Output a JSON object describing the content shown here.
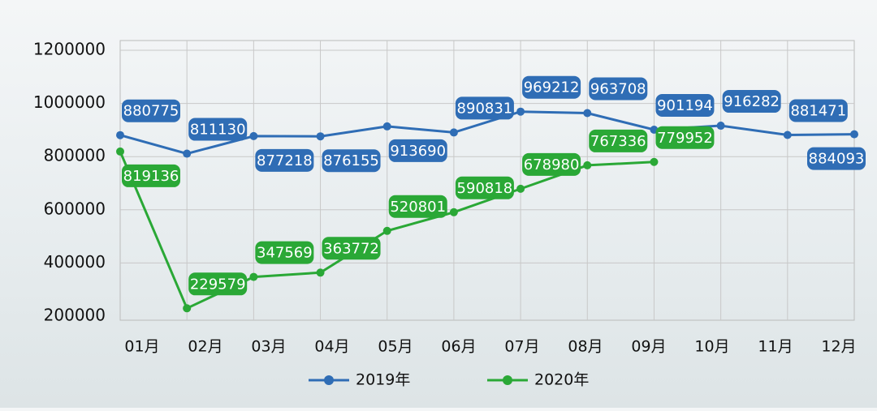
{
  "chart_data": {
    "type": "line",
    "categories": [
      "01月",
      "02月",
      "03月",
      "04月",
      "05月",
      "06月",
      "07月",
      "08月",
      "09月",
      "10月",
      "11月",
      "12月"
    ],
    "series": [
      {
        "name": "2019年",
        "color": "#2f6db5",
        "values": [
          880775,
          811130,
          877218,
          876155,
          913690,
          890831,
          969212,
          963708,
          901194,
          916282,
          881471,
          884093
        ]
      },
      {
        "name": "2020年",
        "color": "#2aa836",
        "values": [
          819136,
          229579,
          347569,
          363772,
          520801,
          590818,
          678980,
          767336,
          779952,
          null,
          null,
          null
        ]
      }
    ],
    "ylim": [
      200000,
      1200000
    ],
    "yticks": [
      200000,
      400000,
      600000,
      800000,
      1000000,
      1200000
    ],
    "grid": true,
    "legend": "bottom"
  }
}
